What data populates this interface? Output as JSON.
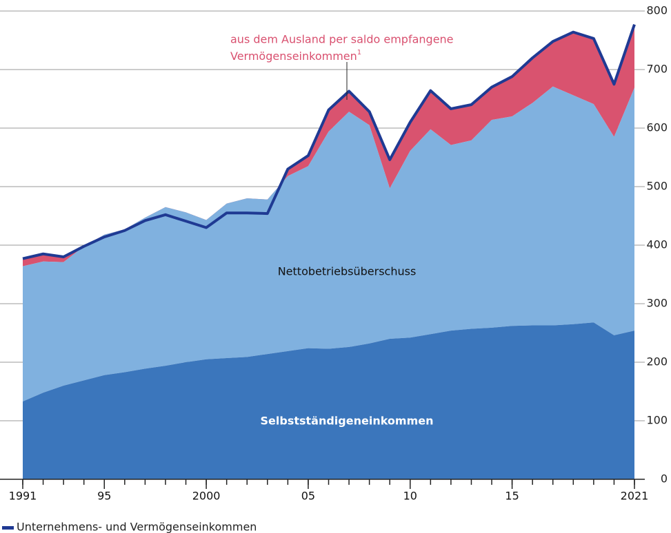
{
  "chart_data": {
    "type": "stacked-area-line",
    "x": [
      1991,
      1992,
      1993,
      1994,
      1995,
      1996,
      1997,
      1998,
      1999,
      2000,
      2001,
      2002,
      2003,
      2004,
      2005,
      2006,
      2007,
      2008,
      2009,
      2010,
      2011,
      2012,
      2013,
      2014,
      2015,
      2016,
      2017,
      2018,
      2019,
      2020,
      2021
    ],
    "xlim": [
      1991,
      2021
    ],
    "xticks": [
      1991,
      {
        "value": 1995,
        "label": "95"
      },
      2000,
      {
        "value": 2005,
        "label": "05"
      },
      {
        "value": 2010,
        "label": "10"
      },
      {
        "value": 2015,
        "label": "15"
      },
      2021
    ],
    "ylim": [
      0,
      800
    ],
    "yticks": [
      0,
      100,
      200,
      300,
      400,
      500,
      600,
      700,
      800
    ],
    "grid": true,
    "series": [
      {
        "name": "Selbstständigeneinkommen",
        "color": "#3b76bc",
        "values": [
          133,
          148,
          160,
          169,
          178,
          183,
          189,
          194,
          200,
          205,
          207,
          209,
          214,
          219,
          224,
          223,
          226,
          232,
          240,
          242,
          248,
          254,
          257,
          259,
          262,
          263,
          263,
          265,
          268,
          246,
          254
        ]
      },
      {
        "name": "Nettobetriebsüberschuss",
        "color": "#80b1df",
        "values": [
          231,
          224,
          211,
          229,
          240,
          244,
          258,
          271,
          256,
          238,
          264,
          271,
          264,
          299,
          311,
          371,
          402,
          373,
          257,
          319,
          350,
          317,
          322,
          355,
          358,
          380,
          408,
          391,
          373,
          339,
          415
        ]
      },
      {
        "color": "#d9536f",
        "values": [
          13,
          13,
          9,
          0,
          -4,
          -2,
          -5,
          -13,
          -15,
          -13,
          -16,
          -25,
          -24,
          12,
          18,
          37,
          35,
          23,
          49,
          49,
          66,
          62,
          61,
          56,
          68,
          77,
          77,
          108,
          112,
          90,
          108
        ]
      },
      {
        "name": "Unternehmens- und Vermögenseinkommen",
        "type": "line",
        "color": "#1f3a93",
        "values": [
          377,
          385,
          380,
          398,
          414,
          425,
          442,
          452,
          441,
          430,
          455,
          455,
          454,
          530,
          553,
          631,
          663,
          628,
          546,
          610,
          664,
          633,
          640,
          670,
          688,
          720,
          748,
          764,
          753,
          675,
          777
        ]
      }
    ],
    "annotation": {
      "lines": [
        "aus dem Ausland per saldo empfangene",
        "Vermögenseinkommen"
      ],
      "footnote": "1",
      "color": "#d9506f"
    }
  }
}
